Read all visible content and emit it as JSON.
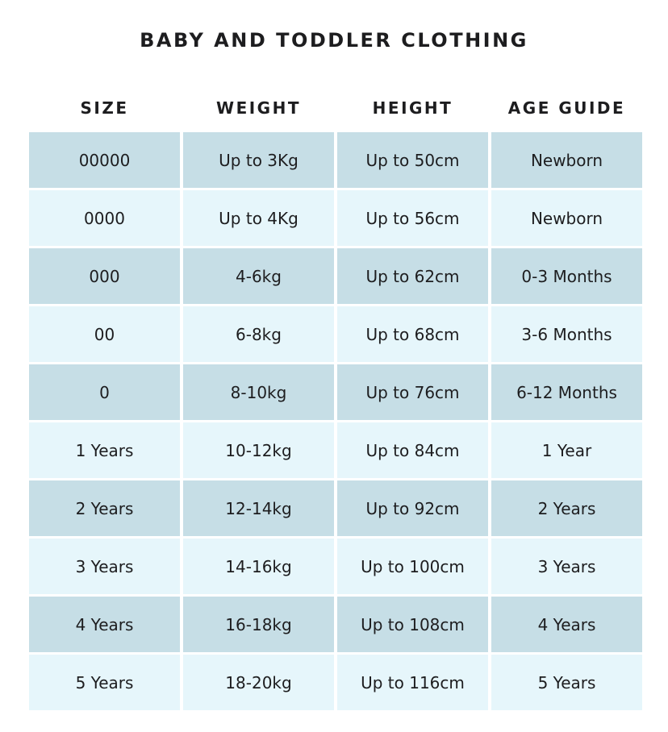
{
  "title": "BABY AND TODDLER CLOTHING",
  "colors": {
    "row_dark": "#c6dee6",
    "row_light": "#e6f6fb",
    "text": "#1d1d1f"
  },
  "table": {
    "headers": [
      "SIZE",
      "WEIGHT",
      "HEIGHT",
      "AGE GUIDE"
    ],
    "rows": [
      [
        "00000",
        "Up to 3Kg",
        "Up to 50cm",
        "Newborn"
      ],
      [
        "0000",
        "Up to 4Kg",
        "Up to 56cm",
        "Newborn"
      ],
      [
        "000",
        "4-6kg",
        "Up to 62cm",
        "0-3 Months"
      ],
      [
        "00",
        "6-8kg",
        "Up to 68cm",
        "3-6 Months"
      ],
      [
        "0",
        "8-10kg",
        "Up to 76cm",
        "6-12 Months"
      ],
      [
        "1 Years",
        "10-12kg",
        "Up to 84cm",
        "1 Year"
      ],
      [
        "2 Years",
        "12-14kg",
        "Up to 92cm",
        "2 Years"
      ],
      [
        "3 Years",
        "14-16kg",
        "Up to 100cm",
        "3 Years"
      ],
      [
        "4 Years",
        "16-18kg",
        "Up to 108cm",
        "4 Years"
      ],
      [
        "5 Years",
        "18-20kg",
        "Up to 116cm",
        "5 Years"
      ]
    ]
  }
}
